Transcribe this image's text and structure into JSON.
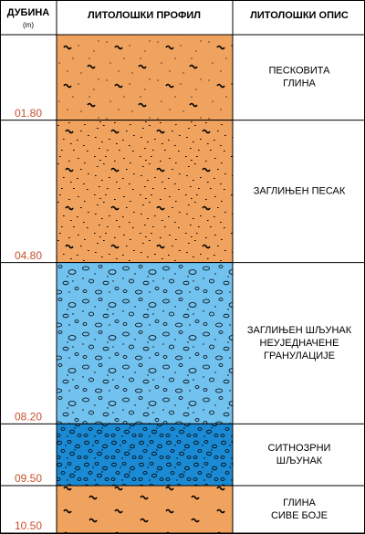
{
  "header": {
    "depth": "ДУБИНА",
    "unit": "(m)",
    "profile": "ЛИТОЛОШКИ ПРОФИЛ",
    "description": "ЛИТОЛОШКИ ОПИС"
  },
  "layers": [
    {
      "depth": "01.80",
      "description": [
        "ПЕСКОВИТА",
        "ГЛИНА"
      ]
    },
    {
      "depth": "04.80",
      "description": [
        "ЗАГЛИЊЕН ПЕСАК"
      ]
    },
    {
      "depth": "08.20",
      "description": [
        "ЗАГЛИЊЕН ШЉУНАК",
        "НЕУЈЕДНАЧЕНЕ",
        "ГРАНУЛАЦИЈЕ"
      ]
    },
    {
      "depth": "09.50",
      "description": [
        "СИТНОЗРНИ",
        "ШЉУНАК"
      ]
    },
    {
      "depth": "10.50",
      "description": [
        "ГЛИНА",
        "СИВЕ БОЈЕ"
      ]
    }
  ]
}
